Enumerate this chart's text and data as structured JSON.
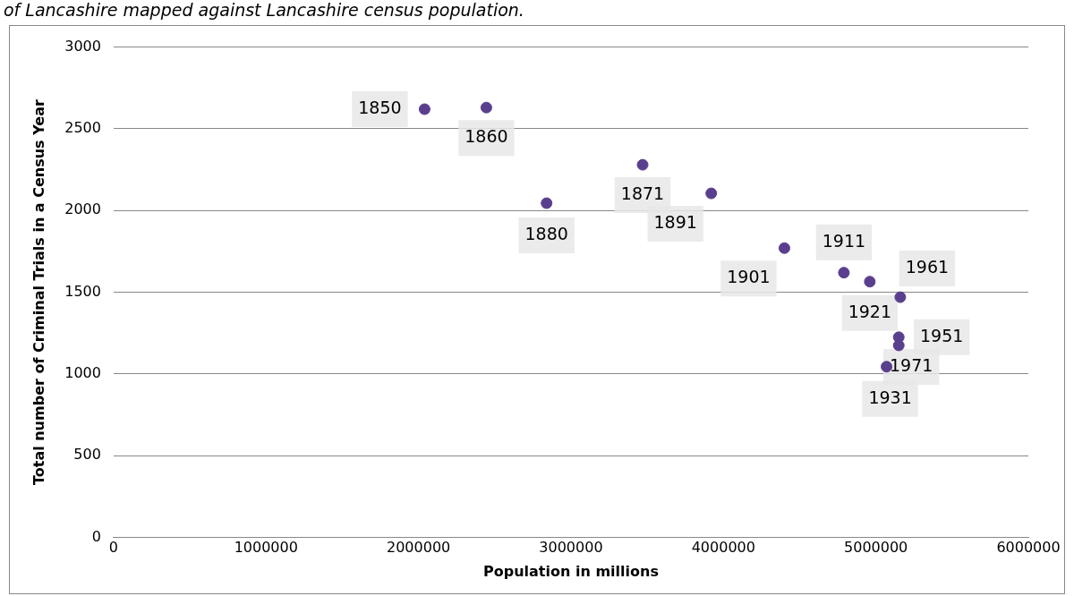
{
  "chart_data": {
    "type": "scatter",
    "title": "of Lancashire mapped against Lancashire census population.",
    "xlabel": "Population in millions",
    "ylabel": "Total number of Criminal Trials in a Census Year",
    "series": [
      {
        "color": "#5a3f8e",
        "x": [
          2040000,
          2445000,
          2840000,
          3470000,
          3920000,
          4400000,
          4790000,
          4960000,
          5160000,
          5150000,
          5150000,
          5070000
        ],
        "values": [
          2620,
          2630,
          2045,
          2280,
          2105,
          1770,
          1620,
          1565,
          1470,
          1225,
          1175,
          1045
        ]
      }
    ],
    "annotations": [
      {
        "text": "1850",
        "x": 2040000,
        "y": 2620
      },
      {
        "text": "1860",
        "x": 2445000,
        "y": 2630
      },
      {
        "text": "1880",
        "x": 2840000,
        "y": 2045
      },
      {
        "text": "1871",
        "x": 3470000,
        "y": 2280
      },
      {
        "text": "1891",
        "x": 3920000,
        "y": 2105
      },
      {
        "text": "1901",
        "x": 4400000,
        "y": 1770
      },
      {
        "text": "1911",
        "x": 4790000,
        "y": 1620
      },
      {
        "text": "1921",
        "x": 4960000,
        "y": 1565
      },
      {
        "text": "1961",
        "x": 5160000,
        "y": 1470
      },
      {
        "text": "1951",
        "x": 5150000,
        "y": 1225
      },
      {
        "text": "1971",
        "x": 5150000,
        "y": 1175
      },
      {
        "text": "1931",
        "x": 5070000,
        "y": 1045
      }
    ],
    "xlim": [
      0,
      6000000
    ],
    "xticks": [
      0,
      1000000,
      2000000,
      3000000,
      4000000,
      5000000,
      6000000
    ],
    "ylim": [
      0,
      3000
    ],
    "yticks": [
      0,
      500,
      1000,
      1500,
      2000,
      2500,
      3000
    ],
    "grid": "y",
    "legend": false,
    "marker": "circle"
  }
}
